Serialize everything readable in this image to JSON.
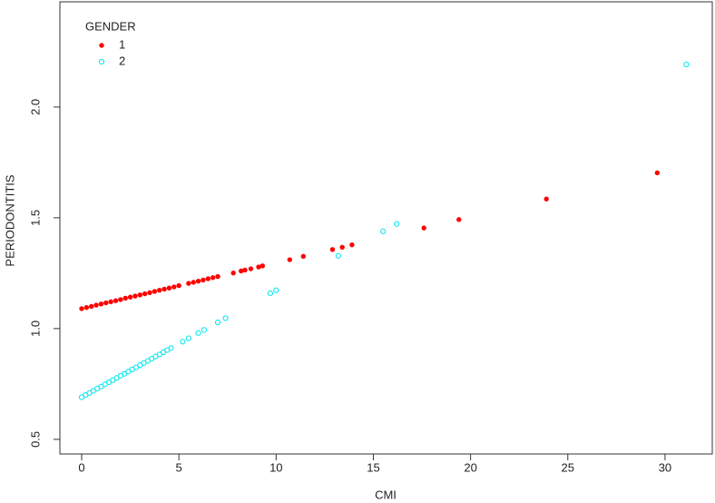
{
  "chart_data": {
    "type": "scatter",
    "x_label": "CMI",
    "y_label": "PERIODONTITIS",
    "legend_title": "GENDER",
    "legend": "top-left",
    "xlim": [
      -1.12,
      32.43
    ],
    "ylim": [
      0.434,
      2.475
    ],
    "xticks": [
      0,
      5,
      10,
      15,
      20,
      25,
      30
    ],
    "yticks": [
      {
        "value": 0.5,
        "label": "0.5"
      },
      {
        "value": 1.0,
        "label": "1.0"
      },
      {
        "value": 1.5,
        "label": "1.5"
      },
      {
        "value": 2.0,
        "label": "2.0"
      }
    ],
    "series": [
      {
        "name": "1",
        "color": "#ff0000",
        "marker": "filled",
        "x": [
          0,
          0.25,
          0.5,
          0.75,
          1,
          1.25,
          1.5,
          1.75,
          2,
          2.25,
          2.5,
          2.75,
          3,
          3.25,
          3.5,
          3.75,
          4,
          4.25,
          4.5,
          4.75,
          5,
          5.5,
          5.75,
          6,
          6.25,
          6.5,
          6.75,
          7,
          7.8,
          8.2,
          8.4,
          8.7,
          9.1,
          9.3,
          10.7,
          11.4,
          12.9,
          13.4,
          13.9,
          17.6,
          19.4,
          23.9,
          29.6
        ],
        "values": [
          1.09,
          1.095,
          1.1,
          1.106,
          1.111,
          1.116,
          1.121,
          1.126,
          1.131,
          1.137,
          1.142,
          1.147,
          1.152,
          1.157,
          1.162,
          1.168,
          1.173,
          1.178,
          1.183,
          1.188,
          1.194,
          1.204,
          1.209,
          1.214,
          1.219,
          1.225,
          1.23,
          1.235,
          1.251,
          1.26,
          1.264,
          1.27,
          1.278,
          1.283,
          1.311,
          1.326,
          1.357,
          1.367,
          1.378,
          1.454,
          1.492,
          1.585,
          1.703
        ]
      },
      {
        "name": "2",
        "color": "#00e5ee",
        "marker": "hollow",
        "x": [
          0,
          0.2,
          0.4,
          0.6,
          0.8,
          1,
          1.2,
          1.4,
          1.6,
          1.8,
          2,
          2.2,
          2.4,
          2.6,
          2.8,
          3,
          3.2,
          3.4,
          3.6,
          3.8,
          4,
          4.2,
          4.4,
          4.6,
          5.2,
          5.5,
          6.0,
          6.3,
          7.0,
          7.4,
          9.7,
          10.0,
          13.2,
          15.5,
          16.2,
          31.1
        ],
        "values": [
          0.69,
          0.7,
          0.709,
          0.719,
          0.729,
          0.738,
          0.748,
          0.758,
          0.767,
          0.777,
          0.787,
          0.796,
          0.806,
          0.816,
          0.825,
          0.835,
          0.845,
          0.854,
          0.864,
          0.874,
          0.883,
          0.893,
          0.903,
          0.912,
          0.941,
          0.956,
          0.98,
          0.994,
          1.028,
          1.047,
          1.159,
          1.173,
          1.328,
          1.439,
          1.472,
          2.192
        ]
      }
    ]
  }
}
